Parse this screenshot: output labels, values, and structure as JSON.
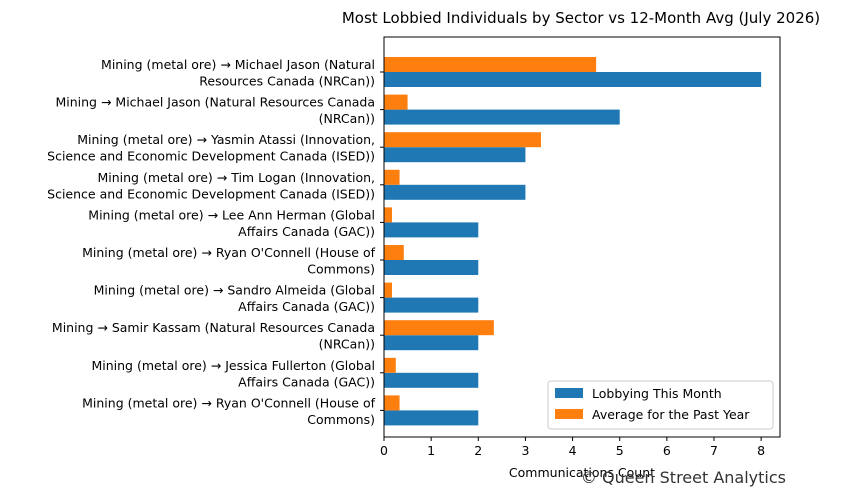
{
  "chart_data": {
    "type": "bar",
    "orientation": "horizontal",
    "title": "Most Lobbied Individuals by Sector vs 12-Month Avg (July 2026)",
    "xlabel": "Communications Count",
    "ylabel": "",
    "xlim": [
      0,
      8.4
    ],
    "xticks": [
      "0",
      "1",
      "2",
      "3",
      "4",
      "5",
      "6",
      "7",
      "8"
    ],
    "grid": false,
    "legend_position": "lower-right",
    "categories": [
      [
        "Mining (metal ore) → Michael Jason (Natural",
        "Resources Canada (NRCan))"
      ],
      [
        "Mining → Michael Jason (Natural Resources Canada",
        "(NRCan))"
      ],
      [
        "Mining (metal ore) → Yasmin Atassi (Innovation,",
        "Science and Economic Development Canada (ISED))"
      ],
      [
        "Mining (metal ore) → Tim Logan (Innovation,",
        "Science and Economic Development Canada (ISED))"
      ],
      [
        "Mining (metal ore) → Lee Ann Herman (Global",
        "Affairs Canada (GAC))"
      ],
      [
        "Mining (metal ore) → Ryan O'Connell (House of",
        "Commons)"
      ],
      [
        "Mining (metal ore) → Sandro Almeida (Global",
        "Affairs Canada (GAC))"
      ],
      [
        "Mining → Samir Kassam (Natural Resources Canada",
        "(NRCan))"
      ],
      [
        "Mining (metal ore) → Jessica Fullerton (Global",
        "Affairs Canada (GAC))"
      ],
      [
        "Mining (metal ore) → Ryan O'Connell (House of",
        "Commons)"
      ]
    ],
    "series": [
      {
        "name": "Lobbying This Month",
        "color": "#1f77b4",
        "values": [
          8,
          5,
          3,
          3,
          2,
          2,
          2,
          2,
          2,
          2
        ]
      },
      {
        "name": "Average for the Past Year",
        "color": "#ff7f0e",
        "values": [
          4.5,
          0.5,
          3.33,
          0.33,
          0.17,
          0.42,
          0.17,
          2.33,
          0.25,
          0.33
        ]
      }
    ]
  },
  "watermark": "© Queen Street Analytics"
}
